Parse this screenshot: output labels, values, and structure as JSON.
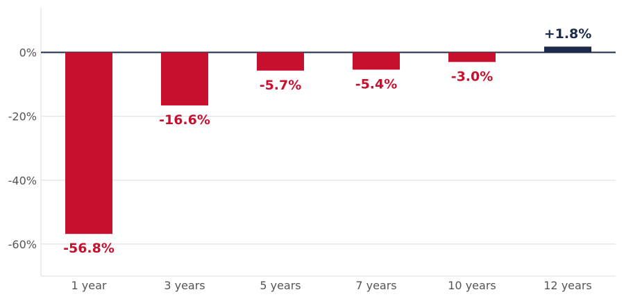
{
  "chart_data": {
    "type": "bar",
    "categories": [
      "1 year",
      "3 years",
      "5 years",
      "7 years",
      "10 years",
      "12 years"
    ],
    "values": [
      -56.8,
      -16.6,
      -5.7,
      -5.4,
      -3.0,
      1.8
    ],
    "data_labels": [
      "-56.8%",
      "-16.6%",
      "-5.7%",
      "-5.4%",
      "-3.0%",
      "+1.8%"
    ],
    "title": "",
    "xlabel": "",
    "ylabel": "",
    "ylim": [
      -70,
      14
    ],
    "yticks": [
      0,
      -20,
      -40,
      -60
    ],
    "ytick_labels": [
      "0%",
      "-20%",
      "-40%",
      "-60%"
    ],
    "grid": true,
    "colors": {
      "negative": "#c8102e",
      "positive": "#1b2a4a",
      "zero_line": "#1b2a4a",
      "grid": "#dddddd",
      "axis": "#dddddd"
    }
  }
}
